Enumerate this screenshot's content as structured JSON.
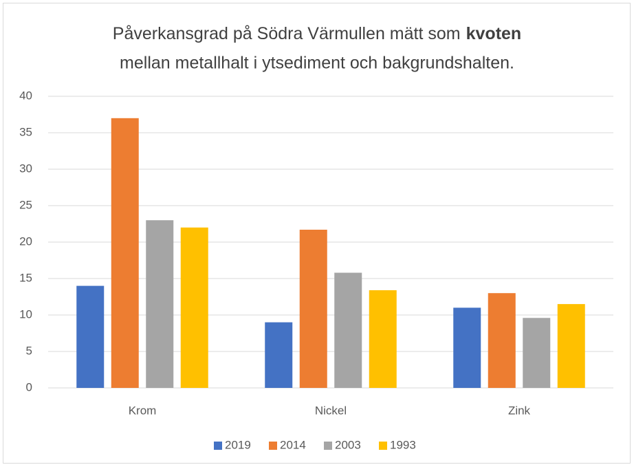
{
  "chart_data": {
    "type": "bar",
    "title": [
      "Påverkansgrad på Södra Värmullen mätt som",
      "kvoten",
      "mellan metallhalt i ytsediment och bakgrundshalten."
    ],
    "categories": [
      "Krom",
      "Nickel",
      "Zink"
    ],
    "series": [
      {
        "name": "2019",
        "color": "#4472c4",
        "values": [
          14,
          9,
          11
        ]
      },
      {
        "name": "2014",
        "color": "#ed7d31",
        "values": [
          37,
          21.7,
          13
        ]
      },
      {
        "name": "2003",
        "color": "#a5a5a5",
        "values": [
          23,
          15.8,
          9.6
        ]
      },
      {
        "name": "1993",
        "color": "#ffc000",
        "values": [
          22,
          13.4,
          11.5
        ]
      }
    ],
    "ylim": [
      0,
      40
    ],
    "yticks": [
      0,
      5,
      10,
      15,
      20,
      25,
      30,
      35,
      40
    ],
    "grid": true,
    "legend": "bottom"
  }
}
